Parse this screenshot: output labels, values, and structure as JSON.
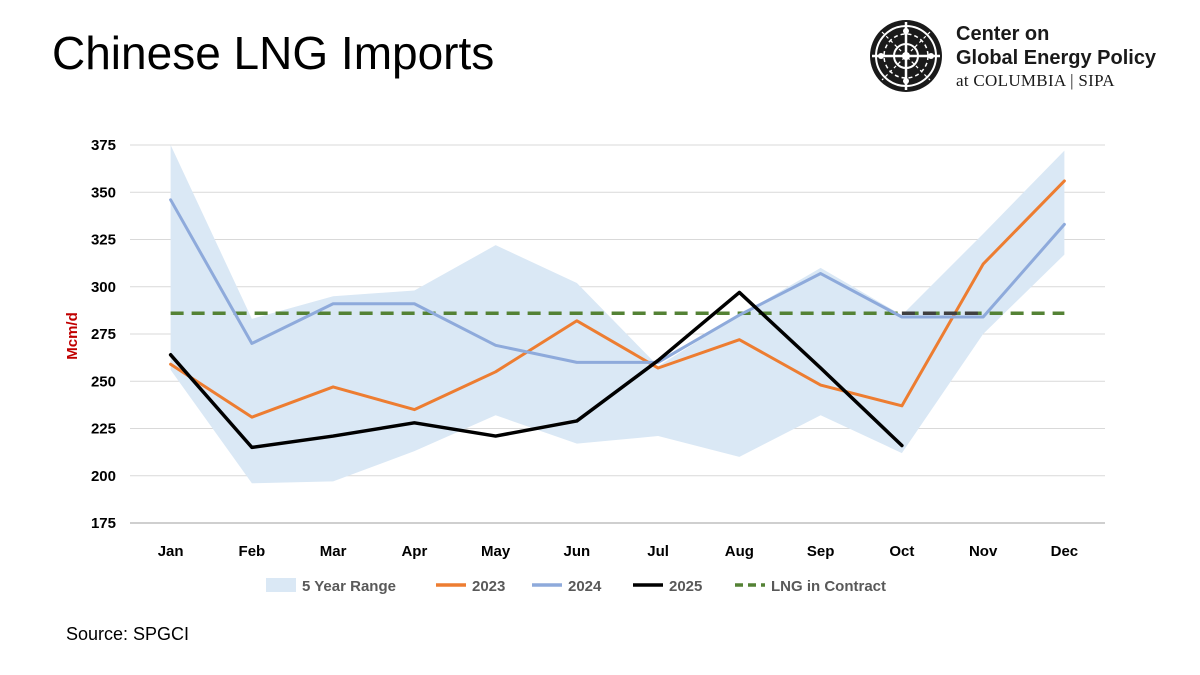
{
  "page": {
    "title": "Chinese LNG Imports",
    "source": "Source: SPGCI"
  },
  "logo": {
    "line1": "Center on",
    "line2": "Global Energy Policy",
    "line3": "at COLUMBIA | SIPA",
    "icon": "cgep-seal-icon"
  },
  "colors": {
    "range": "#dae8f5",
    "s2023": "#ed7d31",
    "s2024": "#8eaadb",
    "s2025": "#000000",
    "contract": "#548235",
    "ylabel": "#c00000",
    "grid": "#d9d9d9"
  },
  "chart_data": {
    "type": "line",
    "title": "Chinese LNG Imports",
    "xlabel": "",
    "ylabel": "Mcm/d",
    "ylim": [
      175,
      375
    ],
    "yticks": [
      175,
      200,
      225,
      250,
      275,
      300,
      325,
      350,
      375
    ],
    "categories": [
      "Jan",
      "Feb",
      "Mar",
      "Apr",
      "May",
      "Jun",
      "Jul",
      "Aug",
      "Sep",
      "Oct",
      "Nov",
      "Dec"
    ],
    "range": {
      "name": "5 Year Range",
      "high": [
        375,
        283,
        295,
        298,
        322,
        302,
        258,
        285,
        310,
        285,
        328,
        372
      ],
      "low": [
        256,
        196,
        197,
        213,
        232,
        217,
        221,
        210,
        232,
        212,
        275,
        317
      ]
    },
    "series": [
      {
        "name": "2023",
        "values": [
          259,
          231,
          247,
          235,
          255,
          282,
          257,
          272,
          248,
          237,
          312,
          356
        ]
      },
      {
        "name": "2024",
        "values": [
          346,
          270,
          291,
          291,
          269,
          260,
          260,
          285,
          307,
          284,
          284,
          333
        ]
      },
      {
        "name": "2025",
        "values": [
          264,
          215,
          221,
          228,
          221,
          229,
          261,
          297,
          257,
          216,
          null,
          null
        ]
      }
    ],
    "reference": {
      "name": "LNG in Contract",
      "value": 286,
      "style": "dashed"
    },
    "extra_dashed": {
      "from": "Oct",
      "to": "Nov",
      "value": 286,
      "color": "#404040"
    },
    "legend": [
      "5 Year Range",
      "2023",
      "2024",
      "2025",
      "LNG in Contract"
    ],
    "legend_position": "bottom",
    "grid": true
  }
}
